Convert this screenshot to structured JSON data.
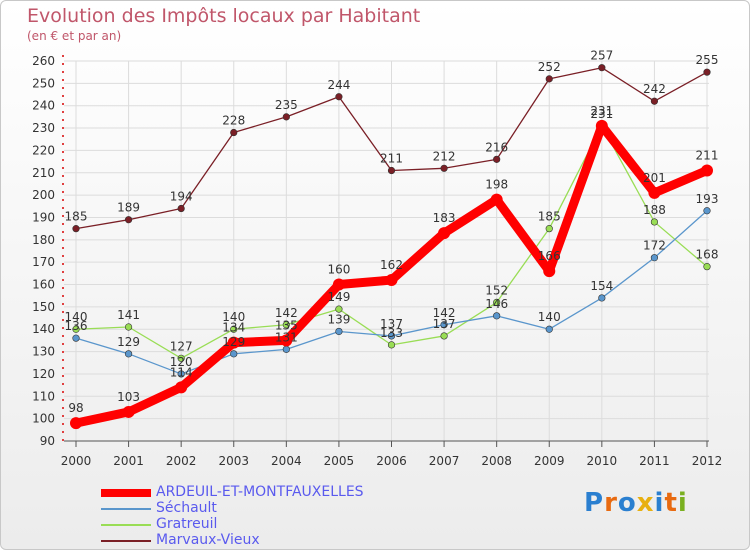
{
  "page": {
    "title": "Evolution des Impôts locaux par Habitant",
    "subtitle": "(en € et par an)"
  },
  "logo": {
    "text": "Proxiti"
  },
  "chart_data": {
    "type": "line",
    "title": "Evolution des Impôts locaux par Habitant",
    "subtitle": "(en € et par an)",
    "xlabel": "",
    "ylabel": "",
    "ylim": [
      90,
      260
    ],
    "ytick_step": 10,
    "grid": true,
    "legend_position": "bottom-left",
    "categories": [
      "2000",
      "2001",
      "2002",
      "2003",
      "2004",
      "2005",
      "2006",
      "2007",
      "2008",
      "2009",
      "2010",
      "2011",
      "2012"
    ],
    "series": [
      {
        "name": "Marvaux-Vieux",
        "color": "#7a1f26",
        "text_color": "#5a5aee",
        "weight": "thin",
        "values": [
          185,
          189,
          194,
          228,
          235,
          244,
          211,
          212,
          216,
          252,
          257,
          242,
          255
        ]
      },
      {
        "name": "Gratreuil",
        "color": "#99dd55",
        "text_color": "#5a5aee",
        "weight": "thin",
        "values": [
          140,
          141,
          127,
          140,
          142,
          149,
          133,
          137,
          152,
          185,
          231,
          188,
          168
        ]
      },
      {
        "name": "Séchault",
        "color": "#5a96cc",
        "text_color": "#5a5aee",
        "weight": "thin",
        "values": [
          136,
          129,
          120,
          129,
          131,
          139,
          137,
          142,
          146,
          140,
          154,
          172,
          193
        ]
      },
      {
        "name": "ARDEUIL-ET-MONTFAUXELLES",
        "color": "#ff0000",
        "text_color": "#5a5aee",
        "weight": "thick",
        "values": [
          98,
          103,
          114,
          134,
          135,
          160,
          162,
          183,
          198,
          166,
          231,
          201,
          211
        ]
      }
    ],
    "legend_order": [
      "ARDEUIL-ET-MONTFAUXELLES",
      "Séchault",
      "Gratreuil",
      "Marvaux-Vieux"
    ]
  }
}
